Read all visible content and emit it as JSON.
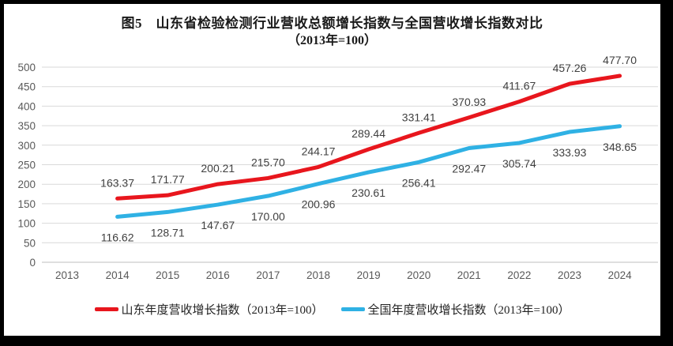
{
  "title": {
    "line1": "图5　山东省检验检测行业营收总额增长指数与全国营收增长指数对比",
    "line2": "（2013年=100）"
  },
  "colors": {
    "shandong": "#e8161d",
    "national": "#2fb1e4",
    "grid": "#d9d9d9",
    "axis_line": "#bfbfbf",
    "axis_text": "#595959",
    "label_text": "#3f3f3f",
    "frame": "#000000",
    "background": "#ffffff"
  },
  "chart_data": {
    "type": "line",
    "title": "图5 山东省检验检测行业营收总额增长指数与全国营收增长指数对比（2013年=100）",
    "categories": [
      "2013",
      "2014",
      "2015",
      "2016",
      "2017",
      "2018",
      "2019",
      "2020",
      "2021",
      "2022",
      "2023",
      "2024"
    ],
    "xlabel": "",
    "ylabel": "",
    "ylim": [
      0,
      500
    ],
    "ytick_step": 50,
    "yticks": [
      0,
      50,
      100,
      150,
      200,
      250,
      300,
      350,
      400,
      450,
      500
    ],
    "grid": true,
    "legend_position": "bottom",
    "series": [
      {
        "name": "山东年度营收增长指数（2013年=100）",
        "color_key": "shandong",
        "label_position": "above",
        "values": [
          null,
          163.37,
          171.77,
          200.21,
          215.7,
          244.17,
          289.44,
          331.41,
          370.93,
          411.67,
          457.26,
          477.7
        ]
      },
      {
        "name": "全国年度营收增长指数（2013年=100）",
        "color_key": "national",
        "label_position": "below",
        "values": [
          null,
          116.62,
          128.71,
          147.67,
          170.0,
          200.96,
          230.61,
          256.41,
          292.47,
          305.74,
          333.93,
          348.65
        ]
      }
    ]
  }
}
